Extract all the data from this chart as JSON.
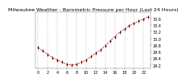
{
  "title": "Milwaukee Weather - Barometric Pressure per Hour (Last 24 Hours)",
  "hours": [
    0,
    1,
    2,
    3,
    4,
    5,
    6,
    7,
    8,
    9,
    10,
    11,
    12,
    13,
    14,
    15,
    16,
    17,
    18,
    19,
    20,
    21,
    22,
    23
  ],
  "pressure": [
    29.72,
    29.62,
    29.52,
    29.42,
    29.35,
    29.28,
    29.22,
    29.2,
    29.22,
    29.28,
    29.35,
    29.45,
    29.55,
    29.65,
    29.78,
    29.92,
    30.05,
    30.18,
    30.28,
    30.38,
    30.45,
    30.52,
    30.58,
    30.65
  ],
  "line_color": "#cc0000",
  "marker_color": "#000000",
  "bg_color": "#ffffff",
  "grid_color": "#999999",
  "tick_color": "#000000",
  "ylim_min": 29.1,
  "ylim_max": 30.8,
  "ytick_values": [
    29.2,
    29.4,
    29.6,
    29.8,
    30.0,
    30.2,
    30.4,
    30.6
  ],
  "ytick_labels": [
    "29.2",
    "29.4",
    "29.6",
    "29.8",
    "30.0",
    "30.2",
    "30.4",
    "30.6"
  ],
  "xtick_positions": [
    0,
    2,
    4,
    6,
    8,
    10,
    12,
    14,
    16,
    18,
    20,
    22
  ],
  "xtick_labels": [
    "0",
    "2",
    "4",
    "6",
    "8",
    "10",
    "12",
    "14",
    "16",
    "18",
    "20",
    "22"
  ],
  "title_fontsize": 4.5,
  "tick_fontsize": 3.5,
  "line_width": 0.5,
  "marker_size": 1.0
}
